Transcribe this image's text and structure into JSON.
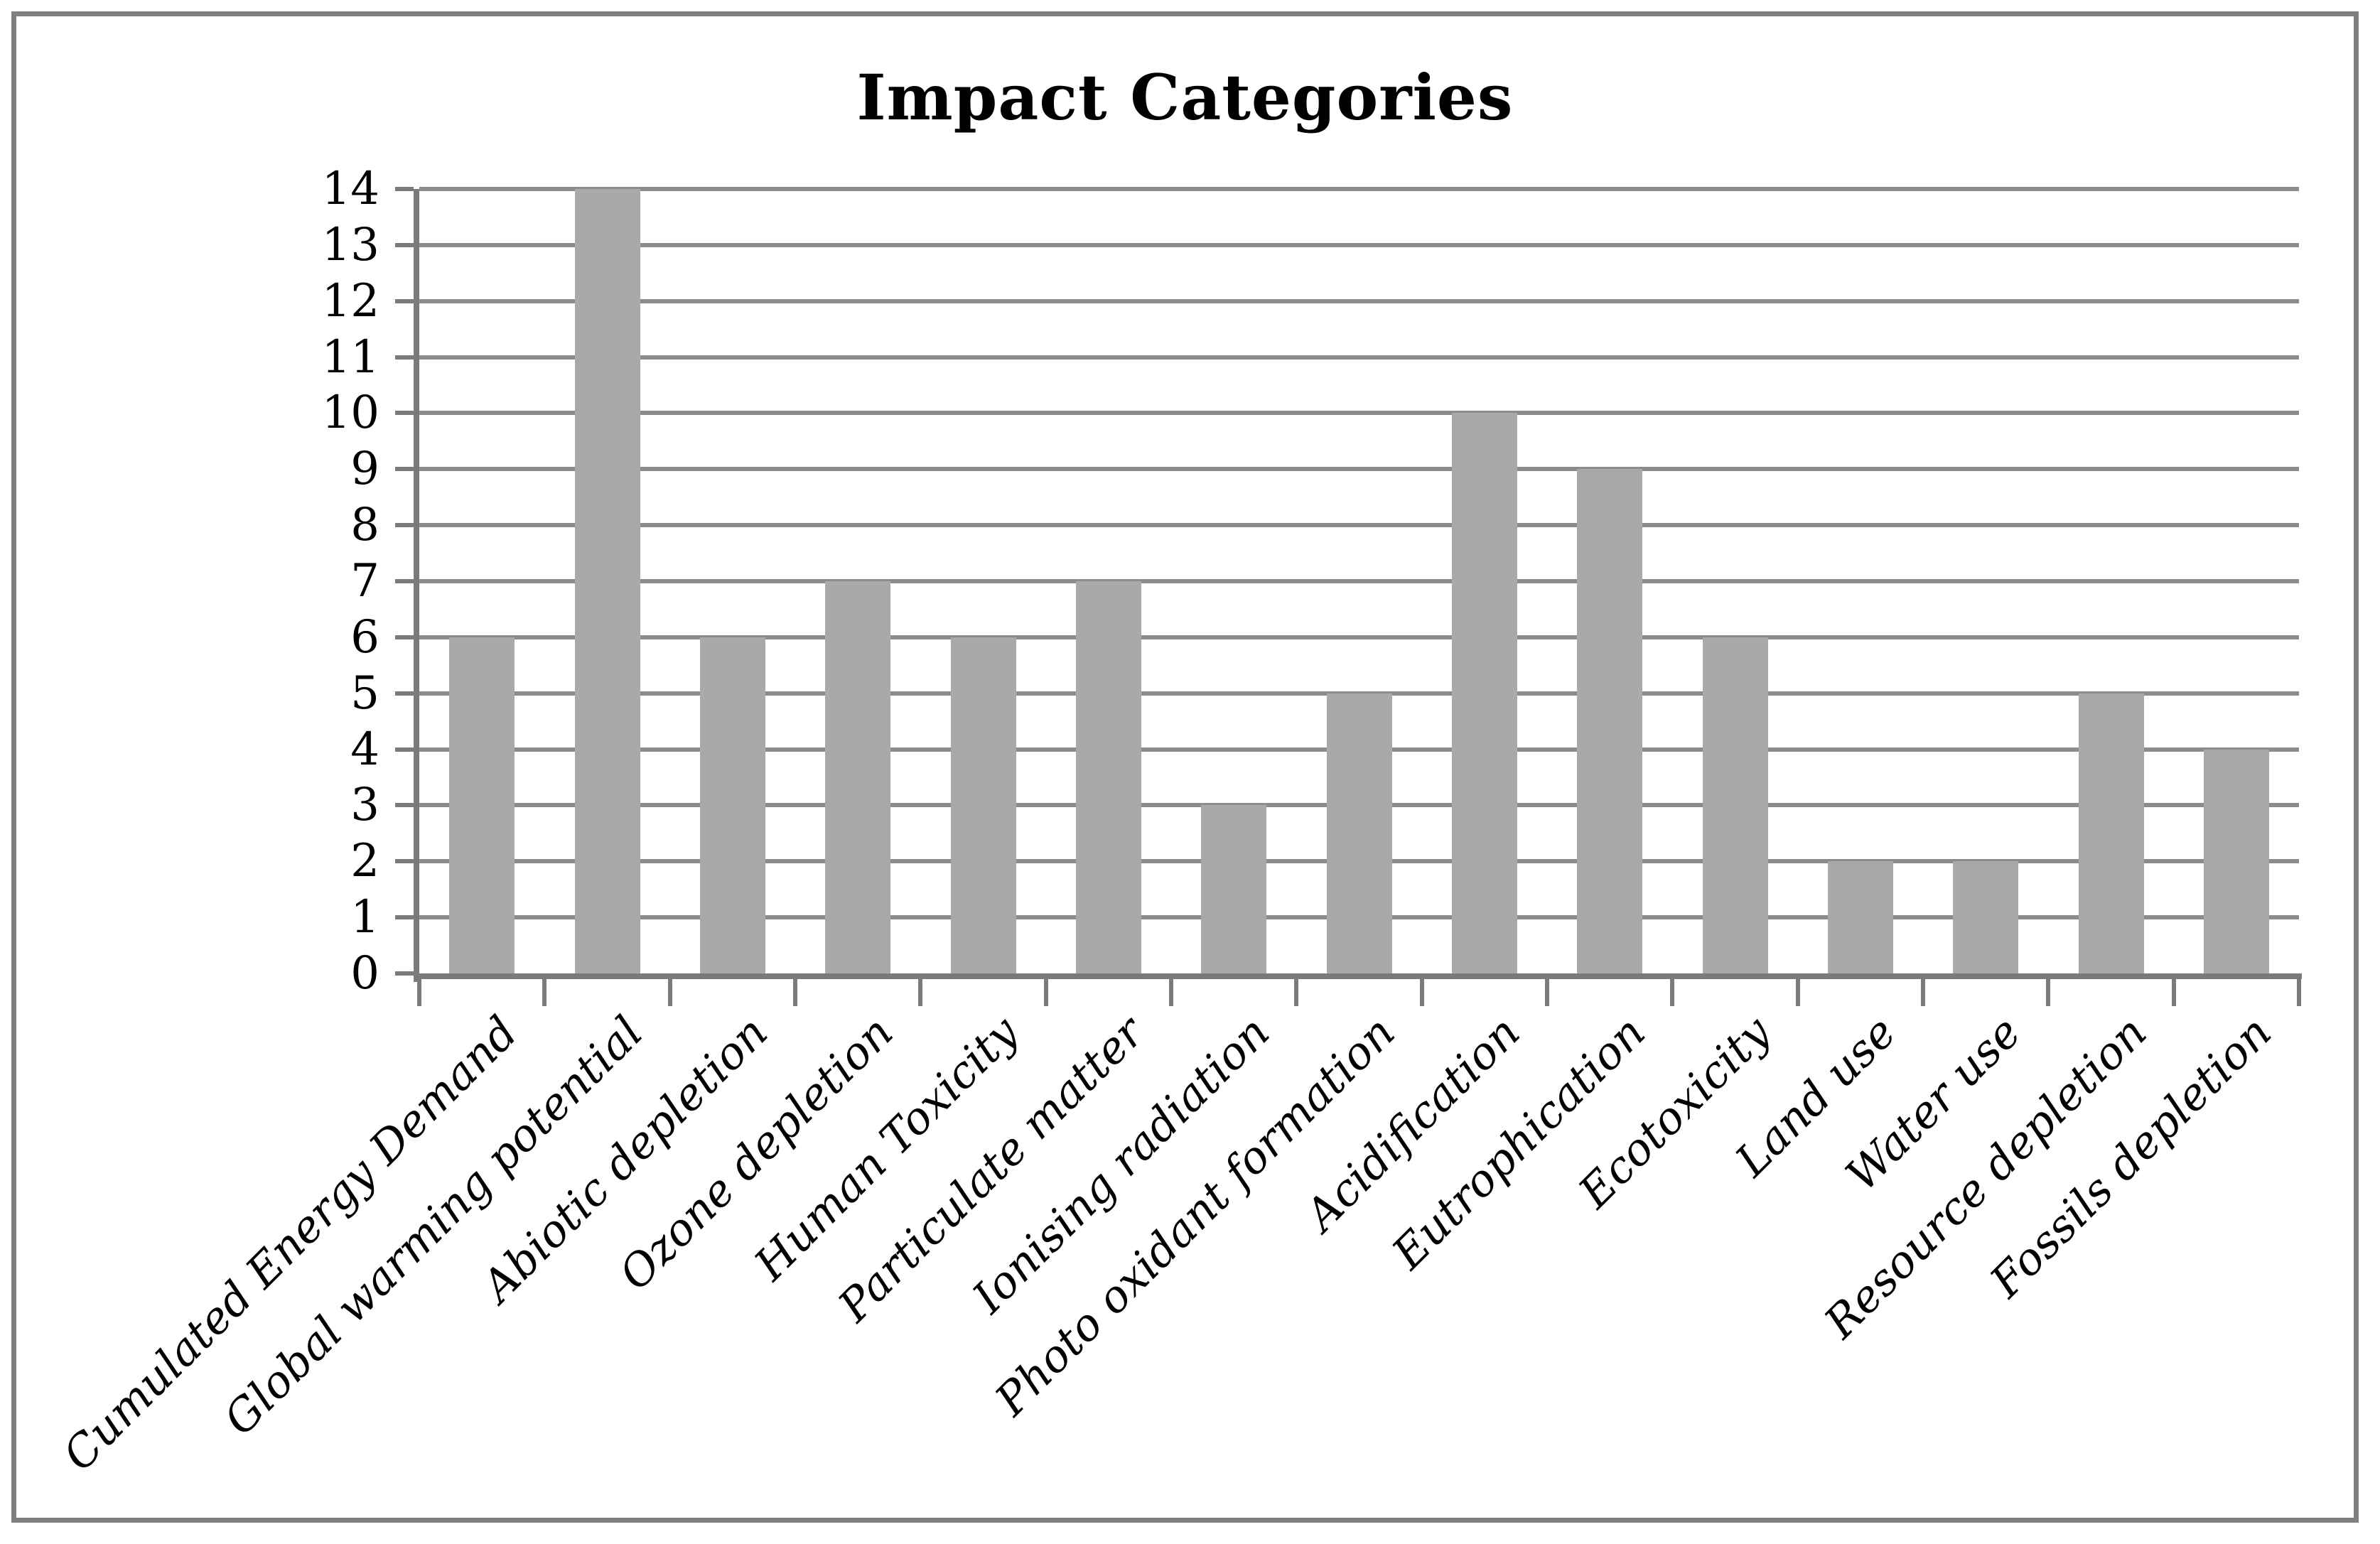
{
  "figure": {
    "border_color": "#808080",
    "background_color": "#ffffff"
  },
  "chart_data": {
    "type": "bar",
    "title": "Impact Categories",
    "xlabel": "",
    "ylabel": "",
    "categories": [
      "Cumulated Energy Demand",
      "Global warming potential",
      "Abiotic depletion",
      "Ozone depletion",
      "Human Toxicity",
      "Particulate matter",
      "Ionising radiation",
      "Photo oxidant formation",
      "Acidification",
      "Eutrophication",
      "Ecotoxicity",
      "Land use",
      "Water use",
      "Resource depletion",
      "Fossils depletion"
    ],
    "values": [
      6,
      14,
      6,
      7,
      6,
      7,
      3,
      5,
      10,
      9,
      6,
      2,
      2,
      5,
      4
    ],
    "ylim": [
      0,
      14
    ],
    "ytick_step": 1,
    "ytick_labels": [
      "0",
      "1",
      "2",
      "3",
      "4",
      "5",
      "6",
      "7",
      "8",
      "9",
      "10",
      "11",
      "12",
      "13",
      "14"
    ],
    "grid": true,
    "legend": "none",
    "bar_color": "#a9a9a9",
    "gridline_color": "#8c8c8c",
    "axis_color": "#7a7a7a",
    "text_color": "#000000",
    "x_label_rotation_deg": 45
  }
}
